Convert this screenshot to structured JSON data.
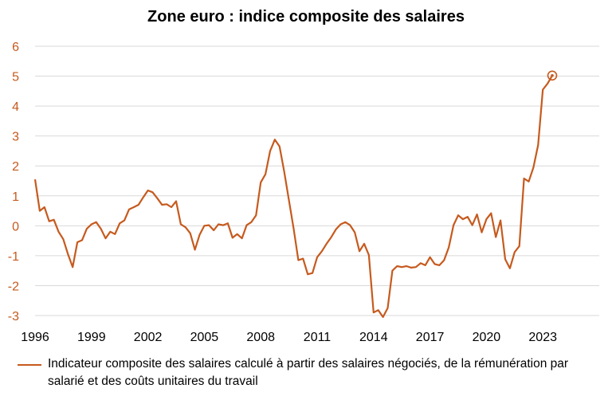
{
  "title": "Zone euro : indice composite des salaires",
  "colors": {
    "series": "#C65A1E",
    "grid": "#D9D9D9",
    "axis_text": "#C65A1E",
    "xtick_text": "#000000"
  },
  "legend": {
    "label": "Indicateur composite des salaires calculé à partir des salaires négociés, de la rémunération par salarié et des coûts unitaires du travail"
  },
  "chart_data": {
    "type": "line",
    "title": "Zone euro : indice composite des salaires",
    "xlabel": "",
    "ylabel": "",
    "xlim": [
      1996,
      2026
    ],
    "ylim": [
      -3,
      6
    ],
    "yticks": [
      "-3",
      "-2",
      "-1",
      "0",
      "1",
      "2",
      "3",
      "4",
      "5",
      "6"
    ],
    "xticks": [
      "1996",
      "1999",
      "2002",
      "2005",
      "2008",
      "2011",
      "2014",
      "2017",
      "2020",
      "2023"
    ],
    "grid": "horizontal",
    "legend_position": "bottom",
    "series": [
      {
        "name": "Indicateur composite des salaires calculé à partir des salaires négociés, de la rémunération par salarié et des coûts unitaires du travail",
        "x": [
          1996.0,
          1996.25,
          1996.5,
          1996.75,
          1997.0,
          1997.25,
          1997.5,
          1997.75,
          1998.0,
          1998.25,
          1998.5,
          1998.75,
          1999.0,
          1999.25,
          1999.5,
          1999.75,
          2000.0,
          2000.25,
          2000.5,
          2000.75,
          2001.0,
          2001.25,
          2001.5,
          2001.75,
          2002.0,
          2002.25,
          2002.5,
          2002.75,
          2003.0,
          2003.25,
          2003.5,
          2003.75,
          2004.0,
          2004.25,
          2004.5,
          2004.75,
          2005.0,
          2005.25,
          2005.5,
          2005.75,
          2006.0,
          2006.25,
          2006.5,
          2006.75,
          2007.0,
          2007.25,
          2007.5,
          2007.75,
          2008.0,
          2008.25,
          2008.5,
          2008.75,
          2009.0,
          2009.25,
          2009.5,
          2009.75,
          2010.0,
          2010.25,
          2010.5,
          2010.75,
          2011.0,
          2011.25,
          2011.5,
          2011.75,
          2012.0,
          2012.25,
          2012.5,
          2012.75,
          2013.0,
          2013.25,
          2013.5,
          2013.75,
          2014.0,
          2014.25,
          2014.5,
          2014.75,
          2015.0,
          2015.25,
          2015.5,
          2015.75,
          2016.0,
          2016.25,
          2016.5,
          2016.75,
          2017.0,
          2017.25,
          2017.5,
          2017.75,
          2018.0,
          2018.25,
          2018.5,
          2018.75,
          2019.0,
          2019.25,
          2019.5,
          2019.75,
          2020.0,
          2020.25,
          2020.5,
          2020.75,
          2021.0,
          2021.25,
          2021.5,
          2021.75,
          2022.0,
          2022.25,
          2022.5,
          2022.75,
          2023.0,
          2023.25,
          2023.5
        ],
        "values": [
          1.55,
          0.5,
          0.62,
          0.15,
          0.2,
          -0.2,
          -0.45,
          -0.95,
          -1.38,
          -0.55,
          -0.48,
          -0.1,
          0.05,
          0.12,
          -0.1,
          -0.42,
          -0.2,
          -0.28,
          0.08,
          0.18,
          0.55,
          0.62,
          0.7,
          0.95,
          1.18,
          1.12,
          0.92,
          0.7,
          0.72,
          0.62,
          0.82,
          0.05,
          -0.05,
          -0.25,
          -0.8,
          -0.3,
          0.0,
          0.02,
          -0.15,
          0.05,
          0.02,
          0.08,
          -0.4,
          -0.28,
          -0.42,
          0.02,
          0.12,
          0.35,
          1.45,
          1.72,
          2.5,
          2.88,
          2.65,
          1.8,
          0.85,
          -0.1,
          -1.15,
          -1.1,
          -1.62,
          -1.58,
          -1.05,
          -0.85,
          -0.6,
          -0.38,
          -0.12,
          0.05,
          0.12,
          0.02,
          -0.22,
          -0.85,
          -0.6,
          -0.98,
          -2.9,
          -2.82,
          -3.05,
          -2.75,
          -1.5,
          -1.35,
          -1.38,
          -1.35,
          -1.4,
          -1.38,
          -1.25,
          -1.32,
          -1.05,
          -1.28,
          -1.32,
          -1.15,
          -0.72,
          0.02,
          0.35,
          0.22,
          0.3,
          0.02,
          0.38,
          -0.22,
          0.22,
          0.42,
          -0.38,
          0.18,
          -1.12,
          -1.42,
          -0.88,
          -0.68,
          1.58,
          1.48,
          1.95,
          2.7,
          4.55,
          4.75,
          5.02
        ],
        "marker_last": "open-circle"
      }
    ]
  }
}
